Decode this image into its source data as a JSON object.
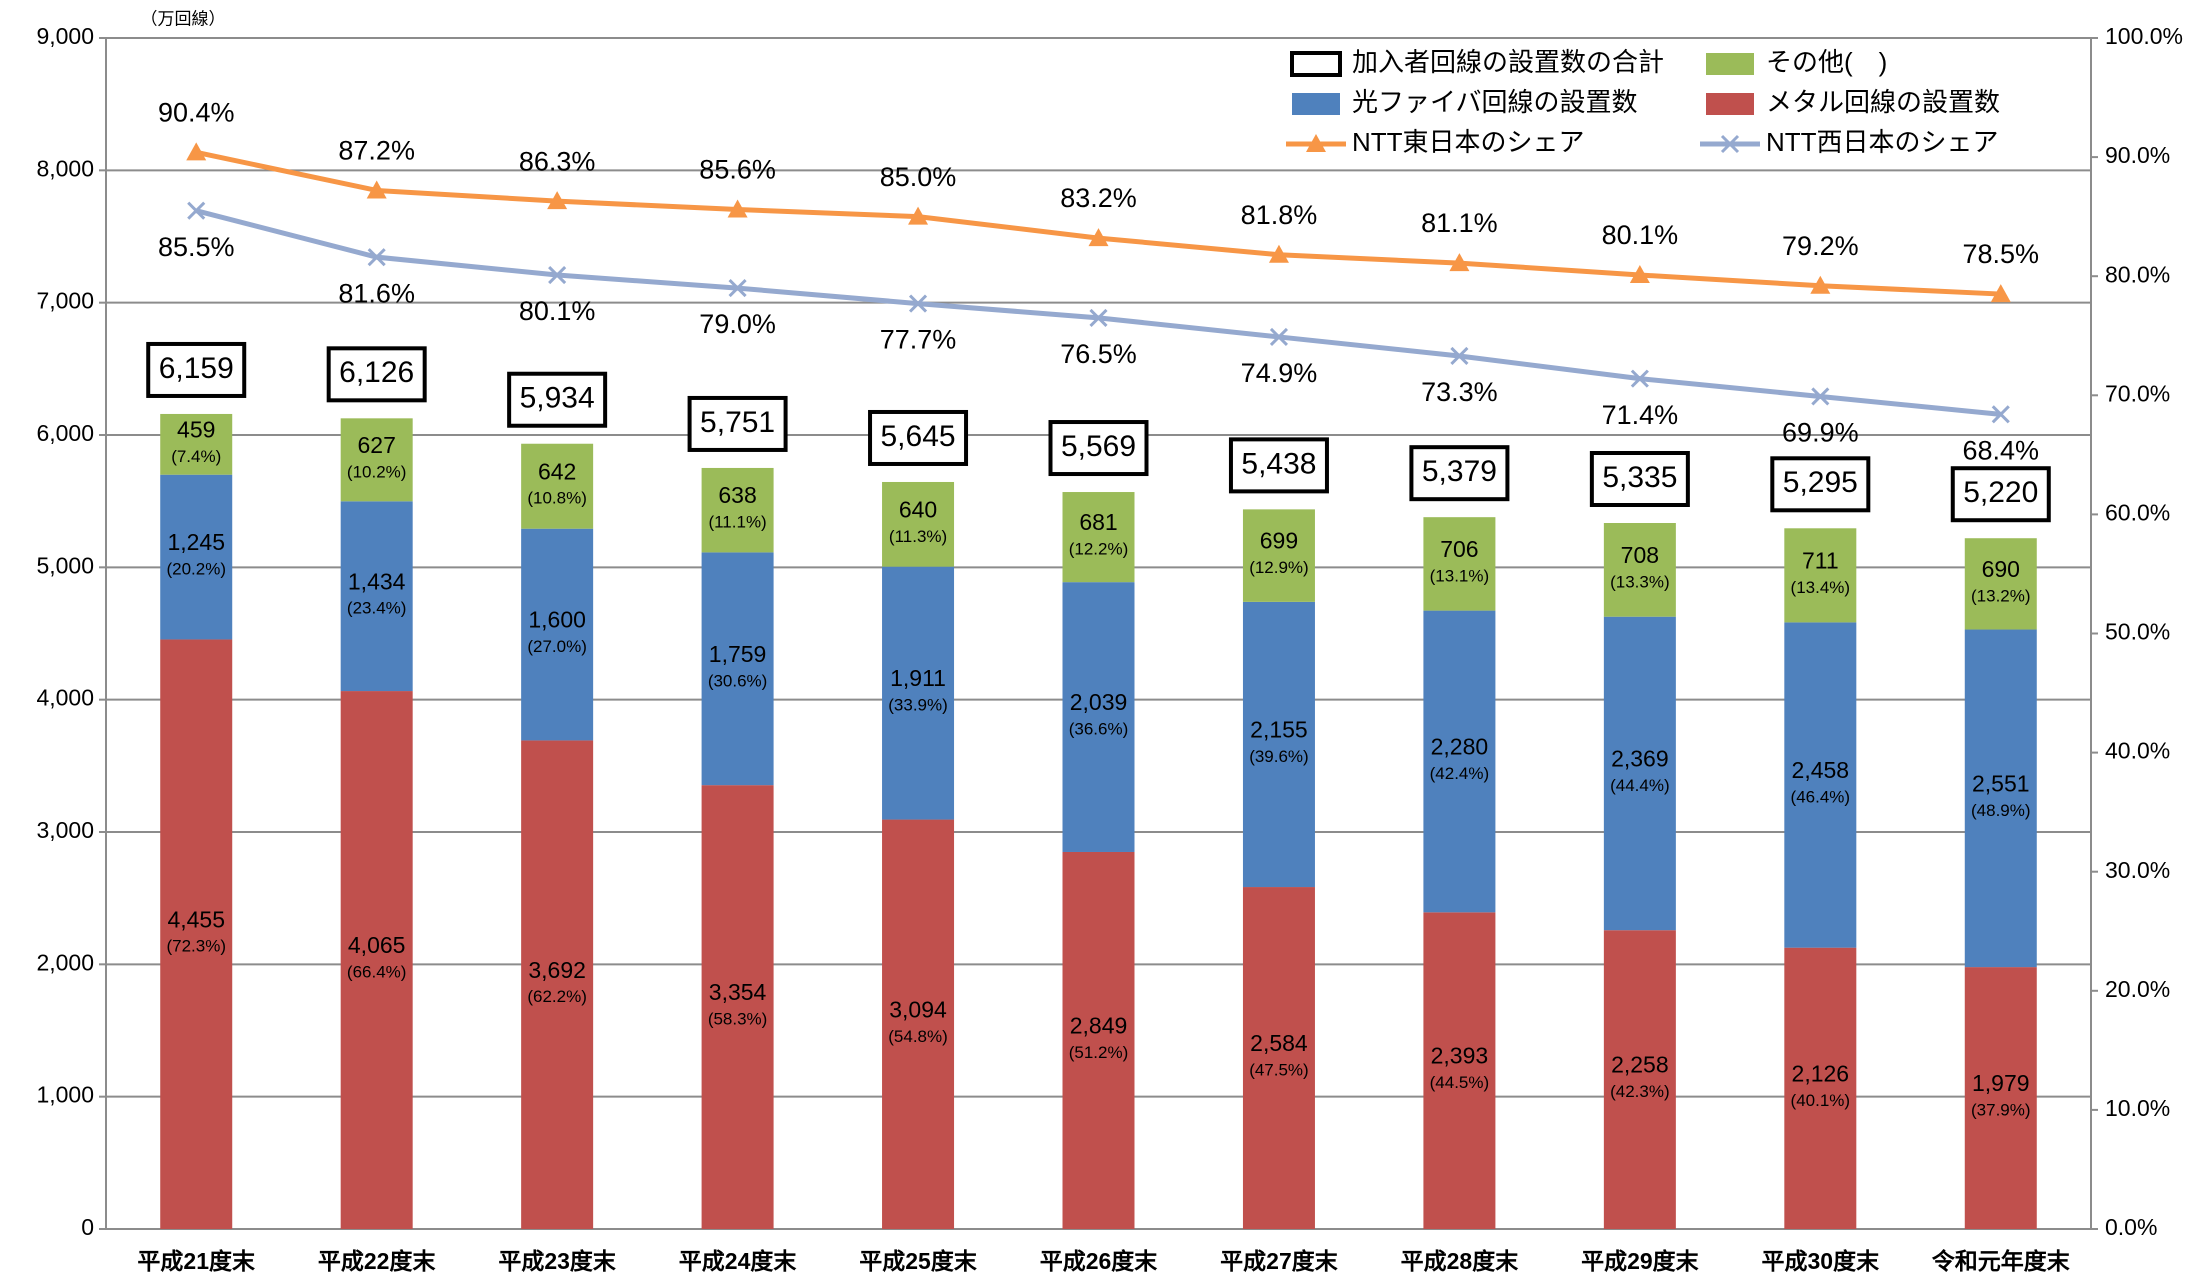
{
  "chart_data": {
    "type": "bar",
    "stacked": true,
    "grid": true,
    "y_unit_label": "（万回線）",
    "categories": [
      "平成21度末",
      "平成22度末",
      "平成23度末",
      "平成24度末",
      "平成25度末",
      "平成26度末",
      "平成27度末",
      "平成28度末",
      "平成29度末",
      "平成30度末",
      "令和元年度末"
    ],
    "series": [
      {
        "name": "メタル回線の設置数",
        "type": "bar",
        "color": "#c0504d",
        "values": [
          4455,
          4065,
          3692,
          3354,
          3094,
          2849,
          2584,
          2393,
          2258,
          2126,
          1979
        ],
        "value_labels": [
          "4,455",
          "4,065",
          "3,692",
          "3,354",
          "3,094",
          "2,849",
          "2,584",
          "2,393",
          "2,258",
          "2,126",
          "1,979"
        ],
        "share_labels": [
          "(72.3%)",
          "(66.4%)",
          "(62.2%)",
          "(58.3%)",
          "(54.8%)",
          "(51.2%)",
          "(47.5%)",
          "(44.5%)",
          "(42.3%)",
          "(40.1%)",
          "(37.9%)"
        ]
      },
      {
        "name": "光ファイバ回線の設置数",
        "type": "bar",
        "color": "#4f81bd",
        "values": [
          1245,
          1434,
          1600,
          1759,
          1911,
          2039,
          2155,
          2280,
          2369,
          2458,
          2551
        ],
        "value_labels": [
          "1,245",
          "1,434",
          "1,600",
          "1,759",
          "1,911",
          "2,039",
          "2,155",
          "2,280",
          "2,369",
          "2,458",
          "2,551"
        ],
        "share_labels": [
          "(20.2%)",
          "(23.4%)",
          "(27.0%)",
          "(30.6%)",
          "(33.9%)",
          "(36.6%)",
          "(39.6%)",
          "(42.4%)",
          "(44.4%)",
          "(46.4%)",
          "(48.9%)"
        ]
      },
      {
        "name": "その他(　)",
        "type": "bar",
        "color": "#9bbb59",
        "values": [
          459,
          627,
          642,
          638,
          640,
          681,
          699,
          706,
          708,
          711,
          690
        ],
        "value_labels": [
          "459",
          "627",
          "642",
          "638",
          "640",
          "681",
          "699",
          "706",
          "708",
          "711",
          "690"
        ],
        "share_labels": [
          "(7.4%)",
          "(10.2%)",
          "(10.8%)",
          "(11.1%)",
          "(11.3%)",
          "(12.2%)",
          "(12.9%)",
          "(13.1%)",
          "(13.3%)",
          "(13.4%)",
          "(13.2%)"
        ]
      },
      {
        "name": "NTT東日本のシェア",
        "type": "line",
        "axis": "y2",
        "color": "#f79646",
        "marker": "triangle",
        "label_side": "above",
        "values": [
          90.4,
          87.2,
          86.3,
          85.6,
          85.0,
          83.2,
          81.8,
          81.1,
          80.1,
          79.2,
          78.5
        ],
        "value_labels": [
          "90.4%",
          "87.2%",
          "86.3%",
          "85.6%",
          "85.0%",
          "83.2%",
          "81.8%",
          "81.1%",
          "80.1%",
          "79.2%",
          "78.5%"
        ]
      },
      {
        "name": "NTT西日本のシェア",
        "type": "line",
        "axis": "y2",
        "color": "#95a9cf",
        "marker": "x",
        "label_side": "below",
        "values": [
          85.5,
          81.6,
          80.1,
          79.0,
          77.7,
          76.5,
          74.9,
          73.3,
          71.4,
          69.9,
          68.4
        ],
        "value_labels": [
          "85.5%",
          "81.6%",
          "80.1%",
          "79.0%",
          "77.7%",
          "76.5%",
          "74.9%",
          "73.3%",
          "71.4%",
          "69.9%",
          "68.4%"
        ]
      }
    ],
    "totals": {
      "name": "加入者回線の設置数の合計",
      "values": [
        6159,
        6126,
        5934,
        5751,
        5645,
        5569,
        5438,
        5379,
        5335,
        5295,
        5220
      ],
      "value_labels": [
        "6,159",
        "6,126",
        "5,934",
        "5,751",
        "5,645",
        "5,569",
        "5,438",
        "5,379",
        "5,335",
        "5,295",
        "5,220"
      ]
    },
    "ylim": [
      0,
      9000
    ],
    "yticks": [
      0,
      {
        "value": 1000,
        "label": "1,000"
      },
      {
        "value": 2000,
        "label": "2,000"
      },
      {
        "value": 3000,
        "label": "3,000"
      },
      {
        "value": 4000,
        "label": "4,000"
      },
      {
        "value": 5000,
        "label": "5,000"
      },
      {
        "value": 6000,
        "label": "6,000"
      },
      {
        "value": 7000,
        "label": "7,000"
      },
      {
        "value": 8000,
        "label": "8,000"
      },
      {
        "value": 9000,
        "label": "9,000"
      }
    ],
    "y2lim": [
      0,
      100
    ],
    "y2ticks": [
      {
        "value": 0,
        "label": "0.0%"
      },
      {
        "value": 10,
        "label": "10.0%"
      },
      {
        "value": 20,
        "label": "20.0%"
      },
      {
        "value": 30,
        "label": "30.0%"
      },
      {
        "value": 40,
        "label": "40.0%"
      },
      {
        "value": 50,
        "label": "50.0%"
      },
      {
        "value": 60,
        "label": "60.0%"
      },
      {
        "value": 70,
        "label": "70.0%"
      },
      {
        "value": 80,
        "label": "80.0%"
      },
      {
        "value": 90,
        "label": "90.0%"
      },
      {
        "value": 100,
        "label": "100.0%"
      }
    ]
  }
}
